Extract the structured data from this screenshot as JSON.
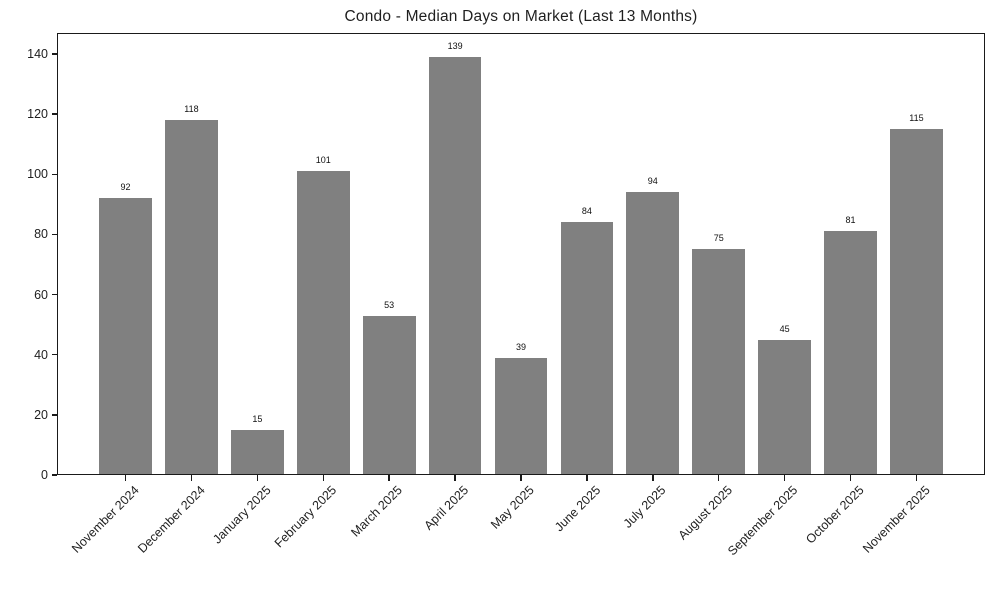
{
  "chart_data": {
    "type": "bar",
    "title": "Condo - Median Days on Market (Last 13 Months)",
    "xlabel": "",
    "ylabel": "",
    "categories": [
      "November 2024",
      "December 2024",
      "January 2025",
      "February 2025",
      "March 2025",
      "April 2025",
      "May 2025",
      "June 2025",
      "July 2025",
      "August 2025",
      "September 2025",
      "October 2025",
      "November 2025"
    ],
    "values": [
      92,
      118,
      15,
      101,
      53,
      139,
      39,
      84,
      94,
      75,
      45,
      81,
      115
    ],
    "value_labels_shown": true,
    "yticks": [
      0,
      20,
      40,
      60,
      80,
      100,
      120,
      140
    ],
    "ylim": [
      0,
      147
    ],
    "xlim": [
      -1.04,
      13.04
    ],
    "bar_width_fraction": 0.8,
    "x_tick_rotation_deg": 45,
    "grid": false,
    "legend": "none",
    "bar_color": "#808080",
    "text_color": "#1f1f1f",
    "axis_color": "#1a1a1a",
    "background_color": "#ffffff"
  }
}
